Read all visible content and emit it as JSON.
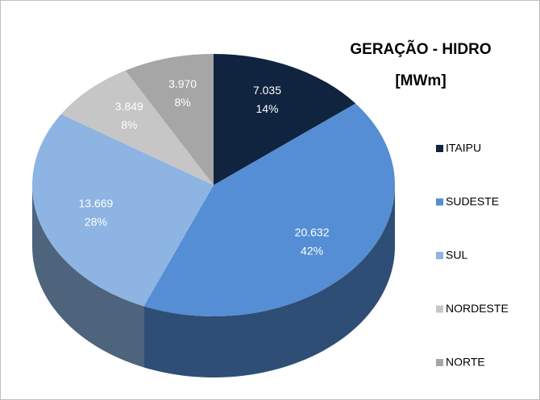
{
  "chart_data": {
    "type": "pie3d",
    "title": "GERAÇÃO - HIDRO",
    "subtitle": "[MWm]",
    "categories": [
      "ITAIPU",
      "SUDESTE",
      "SUL",
      "NORDESTE",
      "NORTE"
    ],
    "values": [
      7035,
      20632,
      13669,
      3849,
      3970
    ],
    "value_labels": [
      "7.035",
      "20.632",
      "13.669",
      "3.849",
      "3.970"
    ],
    "percents": [
      14,
      42,
      28,
      8,
      8
    ],
    "percent_labels": [
      "14%",
      "42%",
      "28%",
      "8%",
      "8%"
    ],
    "colors": [
      "#10233f",
      "#558ed5",
      "#8db4e2",
      "#c6c6c6",
      "#a6a6a6"
    ],
    "legend": "right"
  }
}
